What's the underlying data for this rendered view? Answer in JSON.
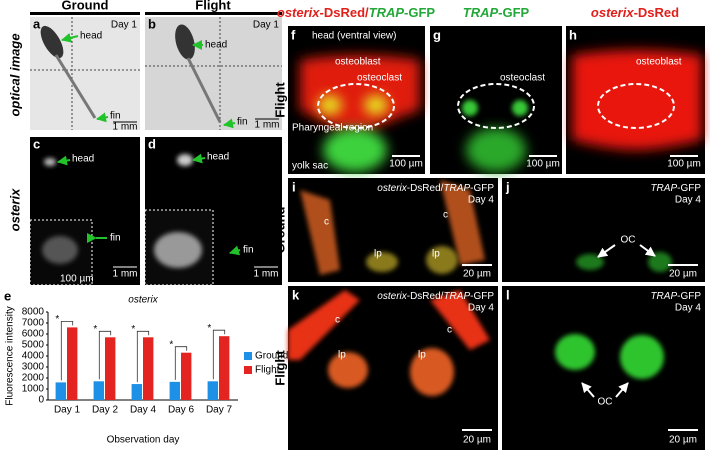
{
  "left_headers": {
    "ground": "Ground",
    "flight": "Flight"
  },
  "row_labels": {
    "optical": "optical image",
    "osterix": "osterix",
    "flight_top": "Flight",
    "ground": "Ground",
    "flight_bottom": "Flight"
  },
  "column_headers": {
    "merge": [
      "osterix",
      "-DsRed/",
      "TRAP",
      "-GFP"
    ],
    "trap": [
      "TRAP",
      "-GFP"
    ],
    "osterix": [
      "osterix",
      "-DsRed"
    ]
  },
  "panels": {
    "a": {
      "label": "a",
      "head": "head",
      "day": "Day 1",
      "fin": "fin",
      "scale": "1 mm"
    },
    "b": {
      "label": "b",
      "head": "head",
      "day": "Day 1",
      "fin": "fin",
      "scale": "1 mm"
    },
    "c": {
      "label": "c",
      "head": "head",
      "fin": "fin",
      "inset_scale": "100 µm",
      "scale": "1 mm"
    },
    "d": {
      "label": "d",
      "head": "head",
      "fin": "fin",
      "scale": "1 mm"
    },
    "f": {
      "label": "f",
      "view": "head (ventral view)",
      "osteoblast": "osteoblast",
      "osteoclast": "osteoclast",
      "region": "Pharyngeal region",
      "yolk": "yolk sac",
      "scale": "100 µm"
    },
    "g": {
      "label": "g",
      "osteoclast": "osteoclast",
      "scale": "100 µm"
    },
    "h": {
      "label": "h",
      "osteoblast": "osteoblast",
      "scale": "100 µm"
    },
    "i": {
      "label": "i",
      "title": [
        "osterix",
        "-DsRed/",
        "TRAP",
        "-GFP"
      ],
      "day": "Day 4",
      "c1": "c",
      "c2": "c",
      "lp1": "lp",
      "lp2": "lp",
      "scale": "20 µm"
    },
    "j": {
      "label": "j",
      "title": [
        "TRAP",
        "-GFP"
      ],
      "day": "Day 4",
      "oc": "OC",
      "scale": "20 µm"
    },
    "k": {
      "label": "k",
      "title": [
        "osterix",
        "-DsRed/",
        "TRAP",
        "-GFP"
      ],
      "day": "Day 4",
      "c1": "c",
      "c2": "c",
      "lp1": "lp",
      "lp2": "lp",
      "scale": "20 µm"
    },
    "l": {
      "label": "l",
      "title": [
        "TRAP",
        "-GFP"
      ],
      "day": "Day 4",
      "oc": "OC",
      "scale": "20 µm"
    }
  },
  "chart_data": {
    "type": "bar",
    "panel_label": "e",
    "title": "osterix",
    "ylabel": "Fluorescence intensity",
    "xlabel": "Observation day",
    "categories": [
      "Day 1",
      "Day 2",
      "Day 4",
      "Day 6",
      "Day 7"
    ],
    "series": [
      {
        "name": "Ground",
        "color": "#1e90e6",
        "values": [
          1600,
          1700,
          1450,
          1650,
          1700
        ]
      },
      {
        "name": "Flight",
        "color": "#e32420",
        "values": [
          6600,
          5700,
          5700,
          4300,
          5800
        ]
      }
    ],
    "significance": [
      "*",
      "*",
      "*",
      "*",
      "*"
    ],
    "ylim": [
      0,
      8000
    ],
    "yticks": [
      0,
      1000,
      2000,
      3000,
      4000,
      5000,
      6000,
      7000,
      8000
    ],
    "legend": "right"
  }
}
